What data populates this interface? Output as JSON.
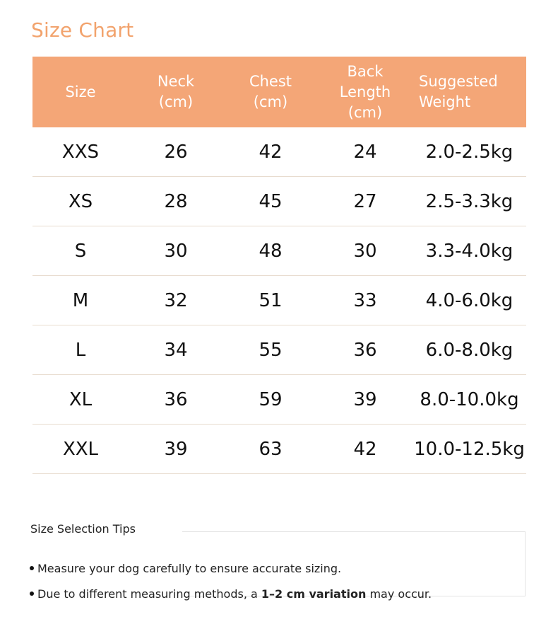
{
  "title": "Size Chart",
  "colors": {
    "accent": "#F4A677",
    "title": "#F2A36D"
  },
  "table": {
    "headers": [
      "Size",
      "Neck\n(cm)",
      "Chest\n(cm)",
      "Back\nLength\n(cm)",
      "Suggested\nWeight"
    ],
    "rows": [
      [
        "XXS",
        "26",
        "42",
        "24",
        "2.0-2.5kg"
      ],
      [
        "XS",
        "28",
        "45",
        "27",
        "2.5-3.3kg"
      ],
      [
        "S",
        "30",
        "48",
        "30",
        "3.3-4.0kg"
      ],
      [
        "M",
        "32",
        "51",
        "33",
        "4.0-6.0kg"
      ],
      [
        "L",
        "34",
        "55",
        "36",
        "6.0-8.0kg"
      ],
      [
        "XL",
        "36",
        "59",
        "39",
        "8.0-10.0kg"
      ],
      [
        "XXL",
        "39",
        "63",
        "42",
        "10.0-12.5kg"
      ]
    ]
  },
  "tips": {
    "title": "Size Selection Tips",
    "items": [
      {
        "text": "Measure your dog carefully to ensure accurate sizing."
      },
      {
        "before": "Due to different measuring methods, a ",
        "bold": "1–2 cm variation",
        "after": " may occur."
      }
    ]
  }
}
